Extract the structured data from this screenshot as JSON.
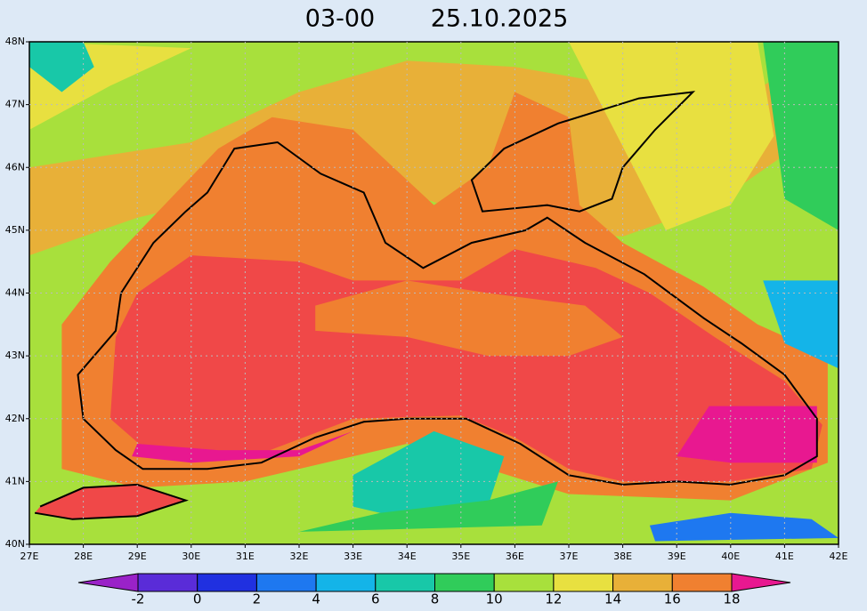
{
  "header": {
    "time": "03-00",
    "date": "25.10.2025"
  },
  "lat_labels": [
    "40N",
    "41N",
    "42N",
    "43N",
    "44N",
    "45N",
    "46N",
    "47N",
    "48N"
  ],
  "lon_labels": [
    "27E",
    "28E",
    "29E",
    "30E",
    "31E",
    "32E",
    "33E",
    "34E",
    "35E",
    "36E",
    "37E",
    "38E",
    "39E",
    "40E",
    "41E",
    "42E"
  ],
  "colorbar": {
    "labels": [
      -2,
      0,
      2,
      4,
      6,
      8,
      10,
      12,
      14,
      16,
      18
    ],
    "under_color": "#9a22c8",
    "colors": [
      "#5a2cd8",
      "#2030e0",
      "#1e78f0",
      "#14b4e8",
      "#18c8a8",
      "#30cc5a",
      "#a8e03c",
      "#e8e040",
      "#e8b038",
      "#f08030",
      "#f04848"
    ],
    "over_color": "#e81890"
  }
}
